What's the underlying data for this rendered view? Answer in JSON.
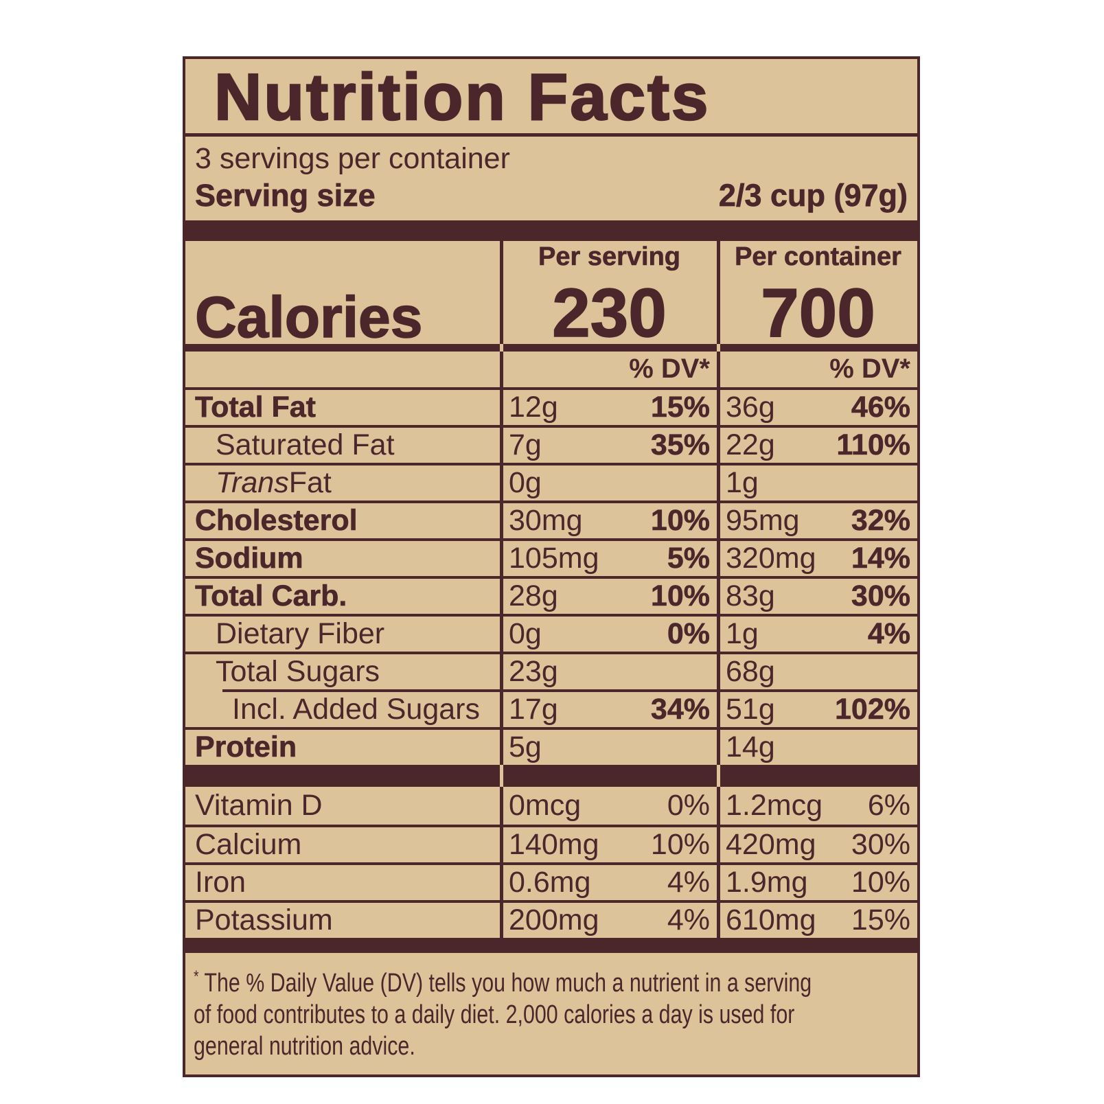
{
  "label": {
    "title": "Nutrition Facts",
    "servings_per_container": "3 servings per container",
    "serving_size_label": "Serving size",
    "serving_size_value": "2/3 cup (97g)",
    "col_serving": "Per serving",
    "col_container": "Per container",
    "calories_label": "Calories",
    "calories_per_serving": "230",
    "calories_per_container": "700",
    "dv_header": "% DV*",
    "rows": [
      {
        "name": "Total Fat",
        "bold": true,
        "indent": 0,
        "serving_amount": "12g",
        "serving_dv": "15%",
        "container_amount": "36g",
        "container_dv": "46%"
      },
      {
        "name": "Saturated Fat",
        "bold": false,
        "indent": 1,
        "serving_amount": "7g",
        "serving_dv": "35%",
        "container_amount": "22g",
        "container_dv": "110%"
      },
      {
        "name": "Trans Fat",
        "bold": false,
        "indent": 1,
        "italic_prefix": "Trans",
        "serving_amount": "0g",
        "serving_dv": "",
        "container_amount": "1g",
        "container_dv": ""
      },
      {
        "name": "Cholesterol",
        "bold": true,
        "indent": 0,
        "serving_amount": "30mg",
        "serving_dv": "10%",
        "container_amount": "95mg",
        "container_dv": "32%"
      },
      {
        "name": "Sodium",
        "bold": true,
        "indent": 0,
        "serving_amount": "105mg",
        "serving_dv": "5%",
        "container_amount": "320mg",
        "container_dv": "14%"
      },
      {
        "name": "Total Carb.",
        "bold": true,
        "indent": 0,
        "serving_amount": "28g",
        "serving_dv": "10%",
        "container_amount": "83g",
        "container_dv": "30%"
      },
      {
        "name": "Dietary Fiber",
        "bold": false,
        "indent": 1,
        "serving_amount": "0g",
        "serving_dv": "0%",
        "container_amount": "1g",
        "container_dv": "4%"
      },
      {
        "name": "Total Sugars",
        "bold": false,
        "indent": 1,
        "serving_amount": "23g",
        "serving_dv": "",
        "container_amount": "68g",
        "container_dv": ""
      },
      {
        "name": "Incl. Added Sugars",
        "bold": false,
        "indent": 2,
        "indent_line": true,
        "serving_amount": "17g",
        "serving_dv": "34%",
        "container_amount": "51g",
        "container_dv": "102%"
      },
      {
        "name": "Protein",
        "bold": true,
        "indent": 0,
        "serving_amount": "5g",
        "serving_dv": "",
        "container_amount": "14g",
        "container_dv": ""
      }
    ],
    "vitamins": [
      {
        "name": "Vitamin D",
        "serving_amount": "0mcg",
        "serving_dv": "0%",
        "container_amount": "1.2mcg",
        "container_dv": "6%"
      },
      {
        "name": "Calcium",
        "serving_amount": "140mg",
        "serving_dv": "10%",
        "container_amount": "420mg",
        "container_dv": "30%"
      },
      {
        "name": "Iron",
        "serving_amount": "0.6mg",
        "serving_dv": "4%",
        "container_amount": "1.9mg",
        "container_dv": "10%"
      },
      {
        "name": "Potassium",
        "serving_amount": "200mg",
        "serving_dv": "4%",
        "container_amount": "610mg",
        "container_dv": "15%"
      }
    ],
    "footnote_marker": "*",
    "footnote_lines": [
      "The % Daily Value (DV) tells you how much a nutrient in a serving",
      "of food contributes to a daily diet. 2,000 calories a day is used for",
      "general nutrition advice."
    ]
  },
  "colors": {
    "page_background": "#ffffff",
    "label_background": "#ddc39a",
    "ink": "#4b262b"
  }
}
